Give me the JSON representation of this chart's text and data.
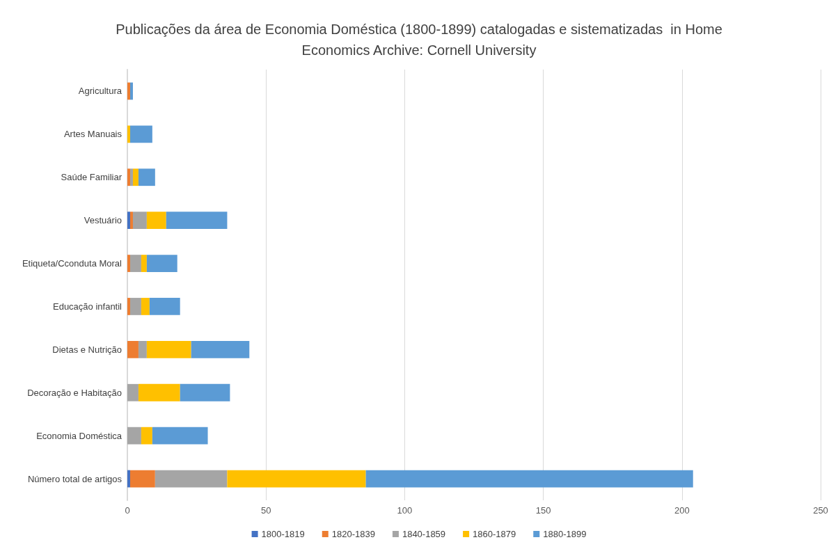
{
  "chart_data": {
    "type": "bar",
    "orientation": "horizontal",
    "stacked": true,
    "title": "Publicações da área de Economia Doméstica (1800-1899) catalogadas e sistematizadas  in Home\nEconomics Archive: Cornell University",
    "categories": [
      "Agricultura",
      "Artes Manuais",
      "Saúde Familiar",
      "Vestuário",
      "Etiqueta/Cconduta Moral",
      "Educação infantil",
      "Dietas e Nutrição",
      "Decoração e Habitação",
      "Economia Doméstica",
      "Número total de artigos"
    ],
    "series": [
      {
        "name": "1800-1819",
        "color": "#4472c4",
        "values": [
          0,
          0,
          0,
          1,
          0,
          0,
          0,
          0,
          0,
          1
        ]
      },
      {
        "name": "1820-1839",
        "color": "#ed7d31",
        "values": [
          1,
          0,
          1,
          1,
          1,
          1,
          4,
          0,
          0,
          9
        ]
      },
      {
        "name": "1840-1859",
        "color": "#a5a5a5",
        "values": [
          0,
          0,
          1,
          5,
          4,
          4,
          3,
          4,
          5,
          26
        ]
      },
      {
        "name": "1860-1879",
        "color": "#ffc000",
        "values": [
          0,
          1,
          2,
          7,
          2,
          3,
          16,
          15,
          4,
          50
        ]
      },
      {
        "name": "1880-1899",
        "color": "#5b9bd5",
        "values": [
          1,
          8,
          6,
          22,
          11,
          11,
          21,
          18,
          20,
          118
        ]
      }
    ],
    "xlim": [
      0,
      250
    ],
    "xticks": [
      0,
      50,
      100,
      150,
      200,
      250
    ],
    "grid": "x",
    "legend": "bottom"
  }
}
